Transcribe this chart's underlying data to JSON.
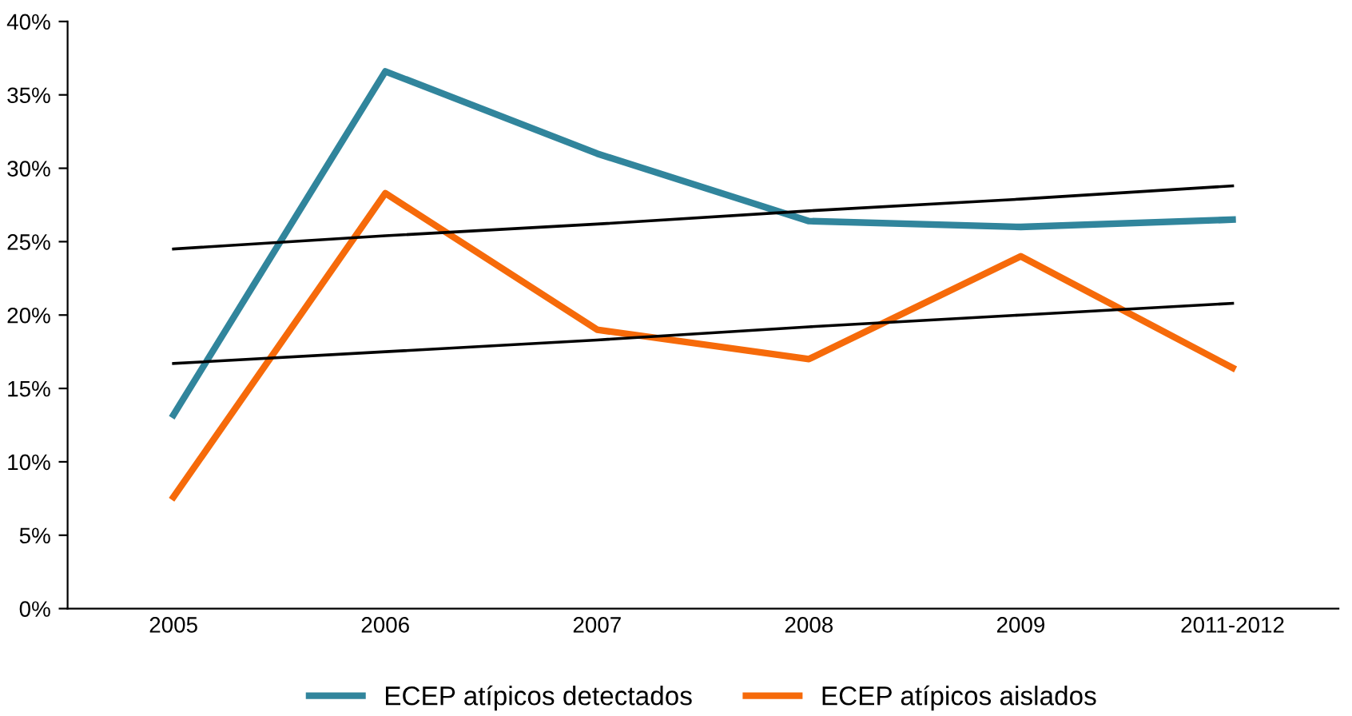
{
  "chart_data": {
    "type": "line",
    "categories": [
      "2005",
      "2006",
      "2007",
      "2008",
      "2009",
      "2011-2012"
    ],
    "series": [
      {
        "name": "ECEP atípicos detectados",
        "color": "#31859c",
        "values": [
          13.2,
          36.6,
          31.0,
          26.4,
          26.0,
          26.5
        ]
      },
      {
        "name": "ECEP atípicos aislados",
        "color": "#f66a0a",
        "values": [
          7.6,
          28.3,
          19.0,
          17.0,
          24.0,
          16.4
        ]
      },
      {
        "type": "line",
        "color": "#000000",
        "values": [
          24.5,
          25.4,
          26.2,
          27.1,
          27.9,
          28.8
        ]
      },
      {
        "type": "line",
        "color": "#000000",
        "values": [
          16.7,
          17.5,
          18.3,
          19.2,
          20.0,
          20.8
        ]
      }
    ],
    "ylim": [
      0,
      40
    ],
    "yticks": [
      {
        "value": 0,
        "label": "0%"
      },
      {
        "value": 5,
        "label": "5%"
      },
      {
        "value": 10,
        "label": "10%"
      },
      {
        "value": 15,
        "label": "15%"
      },
      {
        "value": 20,
        "label": "20%"
      },
      {
        "value": 25,
        "label": "25%"
      },
      {
        "value": 30,
        "label": "30%"
      },
      {
        "value": 35,
        "label": "35%"
      },
      {
        "value": 40,
        "label": "40%"
      }
    ],
    "grid": false,
    "legend": "bottom",
    "marker": "none",
    "line_style": "solid"
  }
}
